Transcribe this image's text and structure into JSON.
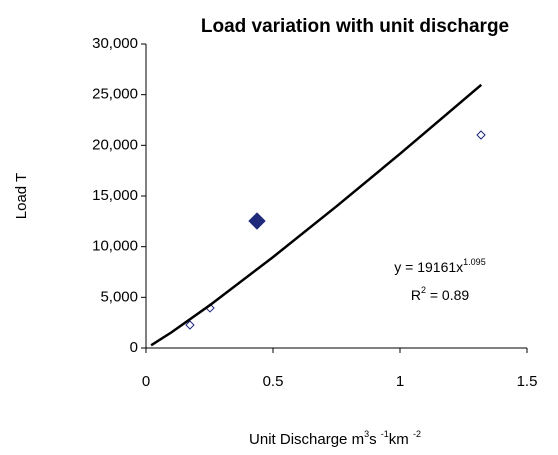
{
  "chart_data": {
    "type": "scatter",
    "title": "Load variation with unit discharge",
    "y_label": "Load  T",
    "x_label": [
      {
        "text": "Unit Discharge m"
      },
      {
        "sup": "3"
      },
      {
        "text": "s "
      },
      {
        "sup": "-1"
      },
      {
        "text": "km "
      },
      {
        "sup": "-2"
      }
    ],
    "equation": {
      "base": "y = 19161x",
      "exponent": "1.095"
    },
    "r_squared": {
      "base": "R",
      "exponent": "2",
      "rest": " = 0.89"
    },
    "xlim": [
      0,
      1.5
    ],
    "xticks": [
      0,
      0.5,
      1,
      1.5
    ],
    "ylim": [
      0,
      30000
    ],
    "yticks": [
      {
        "value": 0,
        "label": "0"
      },
      {
        "value": 5000,
        "label": "5,000"
      },
      {
        "value": 10000,
        "label": "10,000"
      },
      {
        "value": 15000,
        "label": "15,000"
      },
      {
        "value": 20000,
        "label": "20,000"
      },
      {
        "value": 25000,
        "label": "25,000"
      },
      {
        "value": 30000,
        "label": "30,000"
      }
    ],
    "grid": false,
    "series": [
      {
        "marker": "diamond-open",
        "color": "#1f2a7a",
        "x": [
          0.173,
          0.252,
          1.319
        ],
        "values": [
          2270,
          3950,
          21020
        ]
      },
      {
        "marker": "diamond-filled",
        "color": "#1f2a7a",
        "x": [
          0.437
        ],
        "values": [
          12530
        ]
      },
      {
        "marker": "line",
        "color": "#000000",
        "x": [
          0.02,
          0.1,
          0.25,
          0.5,
          0.75,
          1,
          1.32
        ],
        "values": [
          264,
          1540,
          4200,
          8970,
          13980,
          19161,
          25970
        ]
      }
    ]
  }
}
